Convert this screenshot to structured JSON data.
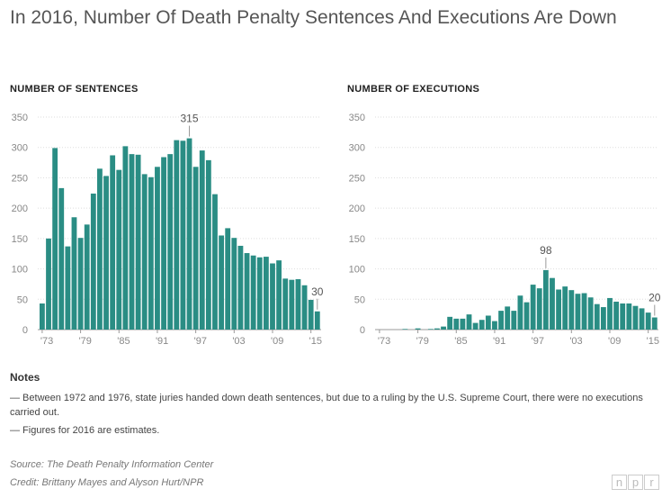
{
  "title": "In 2016, Number Of Death Penalty Sentences And Executions Are Down",
  "colors": {
    "bar": "#2a8d84",
    "grid": "#dddddd",
    "axis_text": "#888888"
  },
  "chart_data": [
    {
      "type": "bar",
      "title": "NUMBER OF SENTENCES",
      "x": [
        1973,
        1974,
        1975,
        1976,
        1977,
        1978,
        1979,
        1980,
        1981,
        1982,
        1983,
        1984,
        1985,
        1986,
        1987,
        1988,
        1989,
        1990,
        1991,
        1992,
        1993,
        1994,
        1995,
        1996,
        1997,
        1998,
        1999,
        2000,
        2001,
        2002,
        2003,
        2004,
        2005,
        2006,
        2007,
        2008,
        2009,
        2010,
        2011,
        2012,
        2013,
        2014,
        2015,
        2016
      ],
      "values": [
        43,
        150,
        299,
        233,
        137,
        185,
        151,
        173,
        224,
        265,
        253,
        287,
        263,
        302,
        289,
        288,
        256,
        251,
        268,
        284,
        289,
        312,
        311,
        315,
        268,
        295,
        279,
        223,
        155,
        167,
        151,
        138,
        126,
        122,
        119,
        120,
        109,
        114,
        84,
        82,
        83,
        73,
        49,
        30
      ],
      "x_ticks": [
        "'73",
        "'79",
        "'85",
        "'91",
        "'97",
        "'03",
        "'09",
        "'15"
      ],
      "y_ticks": [
        0,
        50,
        100,
        150,
        200,
        250,
        300,
        350
      ],
      "ylim": [
        0,
        350
      ],
      "annotations": [
        {
          "x": 1996,
          "label": "315"
        },
        {
          "x": 2016,
          "label": "30"
        }
      ]
    },
    {
      "type": "bar",
      "title": "NUMBER OF EXECUTIONS",
      "x": [
        1973,
        1974,
        1975,
        1976,
        1977,
        1978,
        1979,
        1980,
        1981,
        1982,
        1983,
        1984,
        1985,
        1986,
        1987,
        1988,
        1989,
        1990,
        1991,
        1992,
        1993,
        1994,
        1995,
        1996,
        1997,
        1998,
        1999,
        2000,
        2001,
        2002,
        2003,
        2004,
        2005,
        2006,
        2007,
        2008,
        2009,
        2010,
        2011,
        2012,
        2013,
        2014,
        2015,
        2016
      ],
      "values": [
        0,
        0,
        0,
        0,
        1,
        0,
        2,
        0,
        1,
        2,
        5,
        21,
        18,
        18,
        25,
        11,
        16,
        23,
        14,
        31,
        38,
        31,
        56,
        45,
        74,
        68,
        98,
        85,
        66,
        71,
        65,
        59,
        60,
        53,
        42,
        37,
        52,
        46,
        43,
        43,
        39,
        35,
        28,
        20
      ],
      "x_ticks": [
        "'73",
        "'79",
        "'85",
        "'91",
        "'97",
        "'03",
        "'09",
        "'15"
      ],
      "y_ticks": [
        0,
        50,
        100,
        150,
        200,
        250,
        300,
        350
      ],
      "ylim": [
        0,
        350
      ],
      "annotations": [
        {
          "x": 1999,
          "label": "98"
        },
        {
          "x": 2016,
          "label": "20"
        }
      ]
    }
  ],
  "notes": {
    "heading": "Notes",
    "items": [
      "— Between 1972 and 1976, state juries handed down death sentences, but due to a ruling by the U.S. Supreme Court, there were no executions carried out.",
      "— Figures for 2016 are estimates."
    ]
  },
  "source": "Source: The Death Penalty Information Center",
  "credit": "Credit: Brittany Mayes and Alyson Hurt/NPR",
  "logo": [
    "n",
    "p",
    "r"
  ]
}
